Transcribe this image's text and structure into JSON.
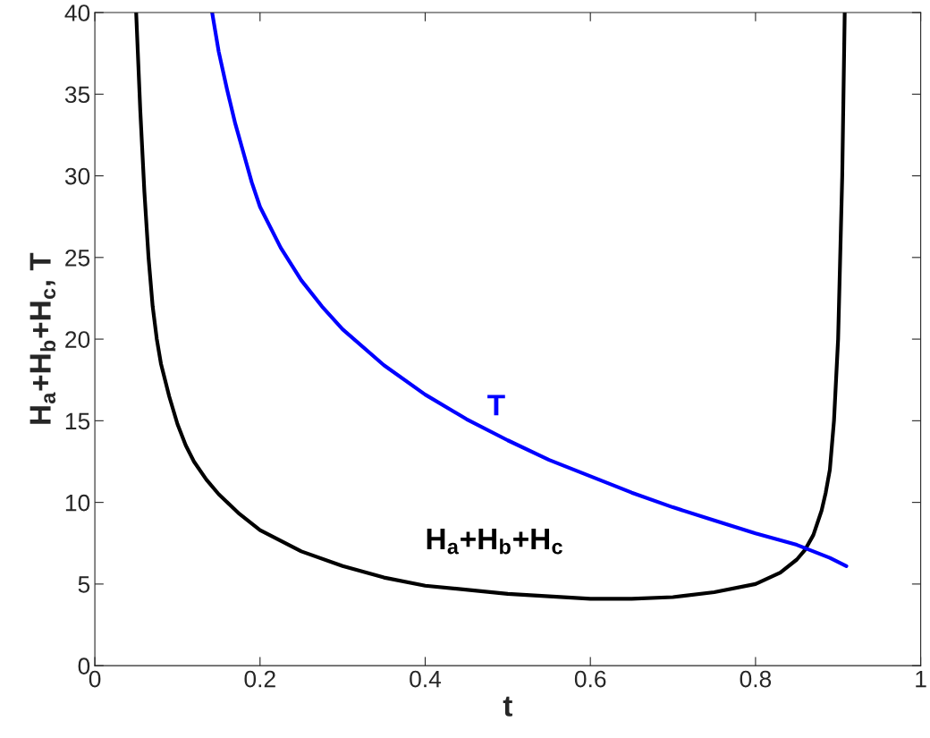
{
  "chart_data": {
    "type": "line",
    "xlabel": "t",
    "ylabel": "H$_{a}$+H$_{b}$+H$_{c}$, T",
    "series": [
      {
        "name": "H$_{a}$+H$_{b}$+H$_{c}$",
        "color": "#000000",
        "x": [
          0.05,
          0.055,
          0.06,
          0.065,
          0.07,
          0.075,
          0.08,
          0.09,
          0.1,
          0.11,
          0.12,
          0.135,
          0.15,
          0.175,
          0.2,
          0.25,
          0.3,
          0.35,
          0.4,
          0.5,
          0.6,
          0.65,
          0.7,
          0.75,
          0.8,
          0.83,
          0.85,
          0.86,
          0.87,
          0.88,
          0.885,
          0.89,
          0.895,
          0.9,
          0.905,
          0.908
        ],
        "values": [
          40,
          34,
          29,
          25,
          22,
          20,
          18.5,
          16.5,
          14.8,
          13.5,
          12.5,
          11.4,
          10.5,
          9.3,
          8.3,
          7,
          6.1,
          5.4,
          4.9,
          4.4,
          4.1,
          4.1,
          4.2,
          4.5,
          5,
          5.7,
          6.5,
          7.1,
          8,
          9.5,
          10.6,
          12,
          15,
          20,
          30,
          40
        ]
      },
      {
        "name": "T",
        "color": "#0000ff",
        "x": [
          0.142,
          0.15,
          0.16,
          0.17,
          0.18,
          0.19,
          0.2,
          0.225,
          0.25,
          0.275,
          0.3,
          0.35,
          0.4,
          0.45,
          0.5,
          0.55,
          0.6,
          0.65,
          0.7,
          0.75,
          0.8,
          0.85,
          0.87,
          0.89,
          0.91
        ],
        "values": [
          40,
          37.6,
          35.3,
          33.2,
          31.4,
          29.6,
          28.1,
          25.6,
          23.6,
          22,
          20.6,
          18.4,
          16.6,
          15.1,
          13.8,
          12.6,
          11.6,
          10.6,
          9.7,
          8.9,
          8.1,
          7.4,
          7.0,
          6.6,
          6.1
        ]
      }
    ],
    "xlim": [
      0,
      1
    ],
    "ylim": [
      0,
      40
    ],
    "xticks": [
      0,
      0.2,
      0.4,
      0.6,
      0.8,
      1
    ],
    "yticks": [
      0,
      5,
      10,
      15,
      20,
      25,
      30,
      35,
      40
    ],
    "grid": false,
    "legend": false
  }
}
